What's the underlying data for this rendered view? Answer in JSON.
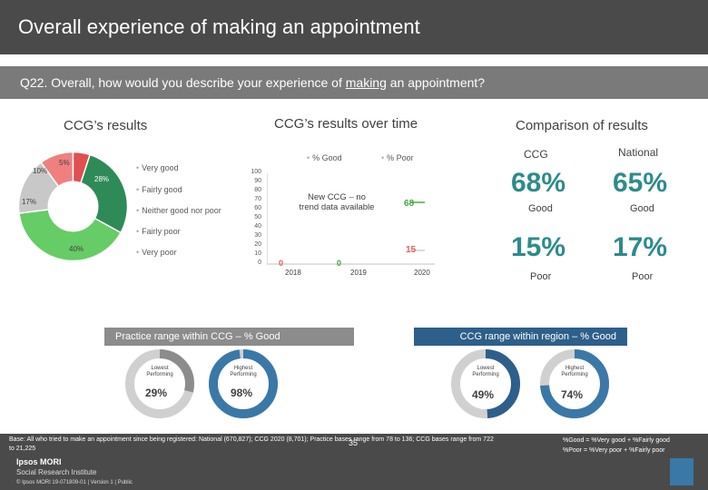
{
  "header": {
    "title": "Overall experience of making an appointment"
  },
  "question": {
    "prefix": "Q22. Overall, how would you describe your experience of ",
    "underlined": "making",
    "suffix": " an appointment?"
  },
  "ccg_results": {
    "heading": "CCG’s results",
    "legend": [
      "Very good",
      "Fairly good",
      "Neither good nor poor",
      "Fairly poor",
      "Very poor"
    ],
    "slices": [
      {
        "label": "28%",
        "value": 28,
        "color": "#2e8b57"
      },
      {
        "label": "40%",
        "value": 40,
        "color": "#66cc66"
      },
      {
        "label": "17%",
        "value": 17,
        "color": "#c8c8c8"
      },
      {
        "label": "10%",
        "value": 10,
        "color": "#f08080"
      },
      {
        "label": "5%",
        "value": 5,
        "color": "#e05050"
      }
    ]
  },
  "over_time": {
    "heading": "CCG’s results over time",
    "legend_good": "% Good",
    "legend_poor": "% Poor",
    "note": "New CCG – no trend data available",
    "y_ticks": [
      "100",
      "90",
      "80",
      "70",
      "60",
      "50",
      "40",
      "30",
      "20",
      "10",
      "0"
    ],
    "x_labels": [
      "2018",
      "2019",
      "2020"
    ],
    "good_2020": "68",
    "poor_2020": "15",
    "placeholder_2018": "0",
    "placeholder_2019": "0"
  },
  "chart_data": {
    "type": "line",
    "x": [
      "2018",
      "2019",
      "2020"
    ],
    "series": [
      {
        "name": "% Good",
        "values": [
          null,
          null,
          68
        ]
      },
      {
        "name": "% Poor",
        "values": [
          null,
          null,
          15
        ]
      }
    ],
    "ylim": [
      0,
      100
    ]
  },
  "comparison": {
    "heading": "Comparison of results",
    "ccg_label": "CCG",
    "national_label": "National",
    "ccg_good": "68%",
    "national_good": "65%",
    "good_label": "Good",
    "ccg_poor": "15%",
    "national_poor": "17%",
    "poor_label": "Poor"
  },
  "practice_range": {
    "heading": "Practice range within CCG – % Good",
    "lowest_label": "Lowest Performing",
    "highest_label": "Highest Performing",
    "lowest_value": "29%",
    "highest_value": "98%",
    "lowest_fraction": 0.29,
    "highest_fraction": 0.98
  },
  "region_range": {
    "heading": "CCG range within region – % Good",
    "lowest_label": "Lowest Performing",
    "highest_label": "Highest Performing",
    "lowest_value": "49%",
    "highest_value": "74%",
    "lowest_fraction": 0.49,
    "highest_fraction": 0.74
  },
  "footer": {
    "base": "Base: All who tried to make an appointment since being registered: National (670,827); CCG 2020 (8,701); Practice bases range from 78 to 136; CCG bases range from 722 to 21,225",
    "def_good": "%Good = %Very good + %Fairly good",
    "def_poor": "%Poor = %Very poor + %Fairly poor",
    "page": "35",
    "logo_1": "Ipsos MORI",
    "logo_2": "Social Research Institute",
    "copyright": "© Ipsos MORI     19-071809-01 | Version 1 | Public"
  },
  "colors": {
    "teal": "#2e8b8b",
    "practice_bar": "#8c8c8c",
    "region_bar": "#2e5f8a",
    "gauge_dark": "#3a78a8",
    "gauge_light": "#d0d0d0"
  }
}
